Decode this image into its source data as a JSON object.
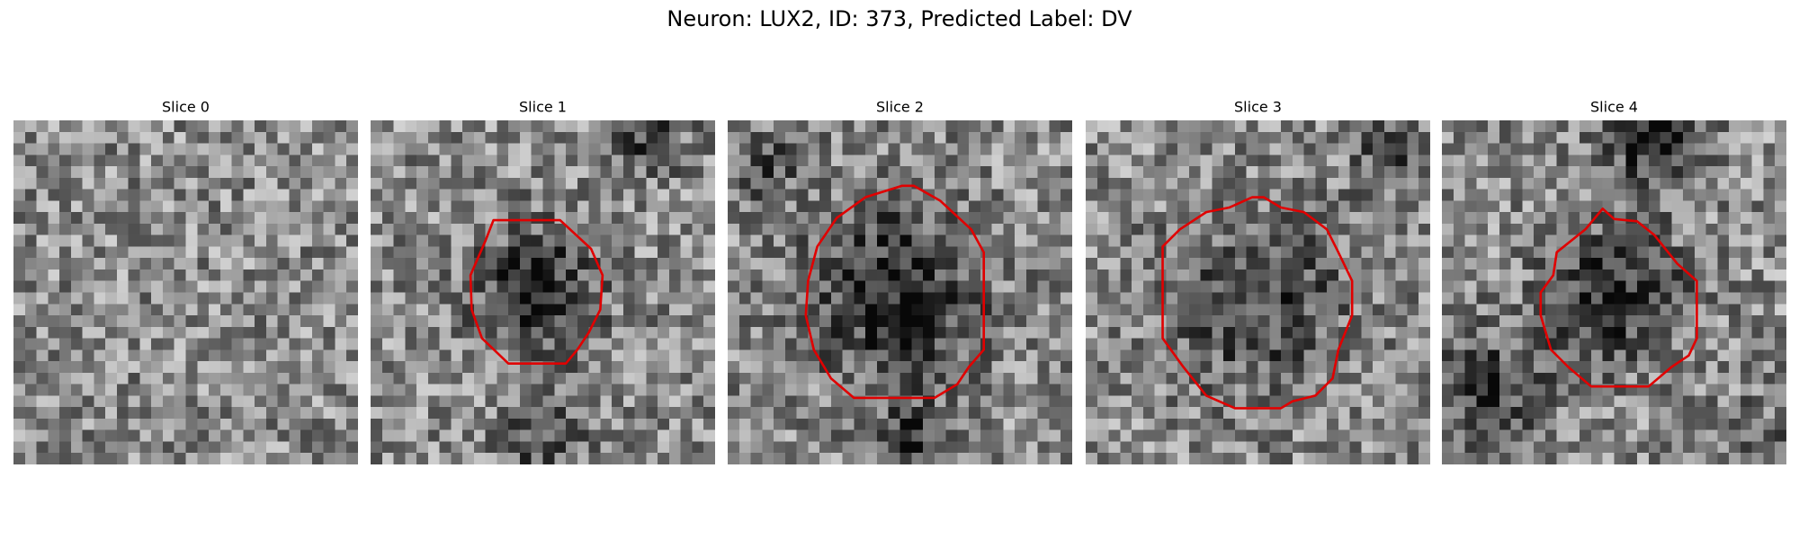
{
  "title": "Neuron: LUX2, ID: 373, Predicted Label: DV",
  "panels": [
    {
      "title": "Slice 0"
    },
    {
      "title": "Slice 1"
    },
    {
      "title": "Slice 2"
    },
    {
      "title": "Slice 3"
    },
    {
      "title": "Slice 4"
    }
  ]
}
